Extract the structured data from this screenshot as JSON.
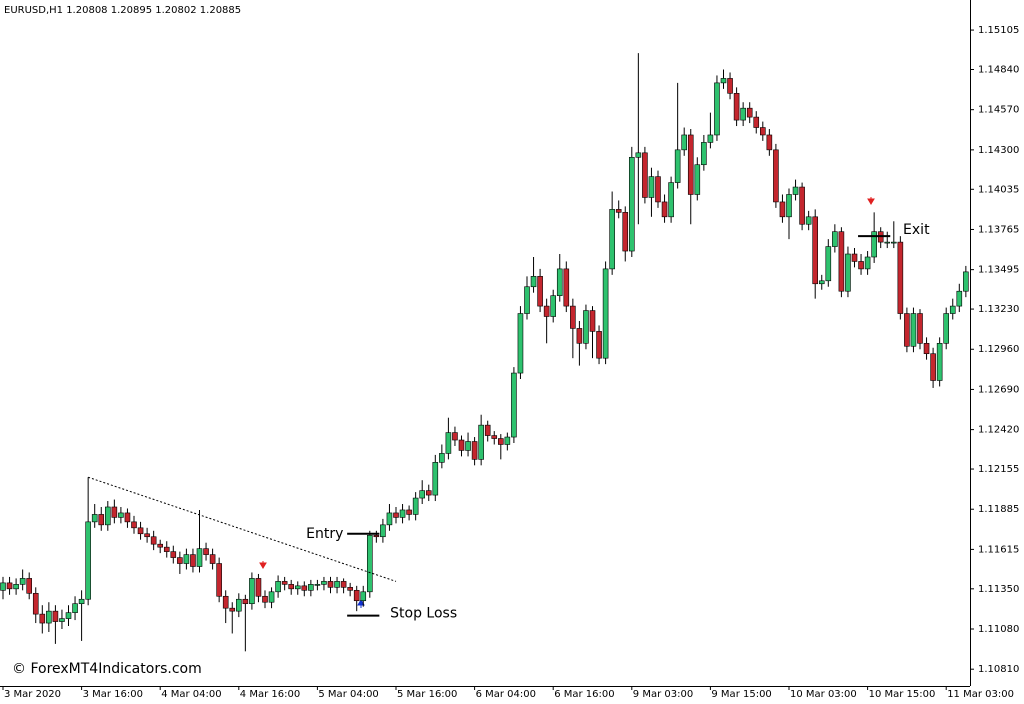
{
  "chart_data": {
    "type": "candlestick",
    "title": "EURUSD,H1  1.20808 1.20895 1.20802 1.20885",
    "watermark": "© ForexMT4Indicators.com",
    "up_color": "#2ec26e",
    "down_color": "#c4262e",
    "categories": [
      "3 Mar 2020",
      null,
      null,
      null,
      null,
      null,
      null,
      null,
      null,
      null,
      null,
      null,
      "3 Mar 16:00",
      null,
      null,
      null,
      null,
      null,
      null,
      null,
      null,
      null,
      null,
      null,
      "4 Mar 04:00",
      null,
      null,
      null,
      null,
      null,
      null,
      null,
      null,
      null,
      null,
      null,
      "4 Mar 16:00",
      null,
      null,
      null,
      null,
      null,
      null,
      null,
      null,
      null,
      null,
      null,
      "5 Mar 04:00",
      null,
      null,
      null,
      null,
      null,
      null,
      null,
      null,
      null,
      null,
      null,
      "5 Mar 16:00",
      null,
      null,
      null,
      null,
      null,
      null,
      null,
      null,
      null,
      null,
      null,
      "6 Mar 04:00",
      null,
      null,
      null,
      null,
      null,
      null,
      null,
      null,
      null,
      null,
      null,
      "6 Mar 16:00",
      null,
      null,
      null,
      null,
      null,
      null,
      null,
      null,
      null,
      null,
      null,
      "9 Mar 03:00",
      null,
      null,
      null,
      null,
      null,
      null,
      null,
      null,
      null,
      null,
      null,
      "9 Mar 15:00",
      null,
      null,
      null,
      null,
      null,
      null,
      null,
      null,
      null,
      null,
      null,
      "10 Mar 03:00",
      null,
      null,
      null,
      null,
      null,
      null,
      null,
      null,
      null,
      null,
      null,
      "10 Mar 15:00",
      null,
      null,
      null,
      null,
      null,
      null,
      null,
      null,
      null,
      null,
      null,
      "11 Mar 03:00",
      null,
      null,
      null
    ],
    "open": [
      1.1134,
      1.1139,
      1.1135,
      1.1138,
      1.1142,
      1.1132,
      1.1118,
      1.1112,
      1.112,
      1.1113,
      1.1115,
      1.1119,
      1.1125,
      1.1128,
      1.118,
      1.1185,
      1.1178,
      1.119,
      1.1183,
      1.1186,
      1.118,
      1.1176,
      1.1172,
      1.117,
      1.1165,
      1.1163,
      1.116,
      1.1156,
      1.1152,
      1.1158,
      1.115,
      1.1162,
      1.1158,
      1.1152,
      1.113,
      1.1122,
      1.112,
      1.1128,
      1.1125,
      1.1142,
      1.113,
      1.1126,
      1.1133,
      1.114,
      1.1138,
      1.1135,
      1.1137,
      1.1134,
      1.1138,
      1.1138,
      1.114,
      1.1136,
      1.114,
      1.1136,
      1.1134,
      1.1127,
      1.1133,
      1.1171,
      1.117,
      1.1178,
      1.1186,
      1.1183,
      1.1188,
      1.1185,
      1.1196,
      1.1201,
      1.1198,
      1.122,
      1.1226,
      1.124,
      1.1235,
      1.1228,
      1.1234,
      1.1222,
      1.1245,
      1.1238,
      1.1236,
      1.1232,
      1.1237,
      1.128,
      1.132,
      1.1338,
      1.1345,
      1.1325,
      1.1318,
      1.1332,
      1.135,
      1.1325,
      1.131,
      1.13,
      1.1322,
      1.1308,
      1.129,
      1.135,
      1.139,
      1.1388,
      1.1362,
      1.1425,
      1.1428,
      1.1398,
      1.1412,
      1.1395,
      1.1385,
      1.1408,
      1.143,
      1.144,
      1.14,
      1.142,
      1.1435,
      1.144,
      1.1475,
      1.1478,
      1.1468,
      1.145,
      1.1458,
      1.1452,
      1.1445,
      1.144,
      1.143,
      1.1395,
      1.1385,
      1.14,
      1.1405,
      1.138,
      1.1385,
      1.134,
      1.1342,
      1.1365,
      1.1375,
      1.1335,
      1.136,
      1.1355,
      1.135,
      1.1358,
      1.1375,
      1.1368,
      1.1368,
      1.1368,
      1.132,
      1.1298,
      1.132,
      1.13,
      1.1293,
      1.1275,
      1.13,
      1.132,
      1.1325,
      1.1335
    ],
    "high": [
      1.1143,
      1.1143,
      1.1142,
      1.1148,
      1.1146,
      1.1136,
      1.1124,
      1.1126,
      1.1124,
      1.1121,
      1.1124,
      1.113,
      1.1134,
      1.121,
      1.1192,
      1.119,
      1.1194,
      1.1195,
      1.119,
      1.1189,
      1.1184,
      1.118,
      1.1176,
      1.1174,
      1.1168,
      1.1167,
      1.1164,
      1.116,
      1.1162,
      1.1162,
      1.1188,
      1.1166,
      1.1162,
      1.1156,
      1.1134,
      1.1126,
      1.1132,
      1.1131,
      1.1146,
      1.1145,
      1.1134,
      1.1136,
      1.1144,
      1.1143,
      1.1141,
      1.114,
      1.114,
      1.1141,
      1.1141,
      1.1143,
      1.1143,
      1.1143,
      1.1142,
      1.1139,
      1.1137,
      1.1137,
      1.1174,
      1.1174,
      1.1182,
      1.1192,
      1.119,
      1.1192,
      1.1191,
      1.12,
      1.1208,
      1.1205,
      1.1225,
      1.1232,
      1.125,
      1.1244,
      1.1238,
      1.124,
      1.1237,
      1.1252,
      1.1248,
      1.1241,
      1.1239,
      1.124,
      1.1284,
      1.1325,
      1.1345,
      1.1358,
      1.135,
      1.133,
      1.1336,
      1.136,
      1.1355,
      1.133,
      1.1315,
      1.1326,
      1.1325,
      1.1312,
      1.1355,
      1.1402,
      1.1396,
      1.1392,
      1.1432,
      1.1495,
      1.1432,
      1.1418,
      1.1416,
      1.14,
      1.1412,
      1.1475,
      1.1445,
      1.1444,
      1.1425,
      1.144,
      1.1455,
      1.148,
      1.1484,
      1.1482,
      1.1472,
      1.1462,
      1.1462,
      1.1456,
      1.1449,
      1.1444,
      1.1434,
      1.14,
      1.1404,
      1.141,
      1.1408,
      1.1389,
      1.139,
      1.1346,
      1.137,
      1.138,
      1.1378,
      1.1365,
      1.1364,
      1.136,
      1.1362,
      1.1388,
      1.1378,
      1.1375,
      1.1382,
      1.1372,
      1.1324,
      1.1324,
      1.1323,
      1.1304,
      1.1297,
      1.1304,
      1.1324,
      1.133,
      1.134,
      1.1352
    ],
    "low": [
      1.1128,
      1.1131,
      1.1131,
      1.1134,
      1.1128,
      1.1112,
      1.1105,
      1.1106,
      1.1098,
      1.1108,
      1.111,
      1.1114,
      1.11,
      1.1124,
      1.1176,
      1.1174,
      1.1174,
      1.1179,
      1.1179,
      1.1176,
      1.1172,
      1.1168,
      1.1166,
      1.1161,
      1.1159,
      1.1156,
      1.1152,
      1.1145,
      1.1148,
      1.1146,
      1.1146,
      1.1154,
      1.1148,
      1.1126,
      1.1112,
      1.1105,
      1.1116,
      1.1093,
      1.1121,
      1.1126,
      1.1122,
      1.1122,
      1.1129,
      1.1134,
      1.1131,
      1.1131,
      1.113,
      1.113,
      1.1134,
      1.1134,
      1.1132,
      1.1132,
      1.1132,
      1.113,
      1.112,
      1.1123,
      1.1129,
      1.1166,
      1.1166,
      1.1174,
      1.1179,
      1.1179,
      1.1181,
      1.1181,
      1.1192,
      1.1194,
      1.1194,
      1.1216,
      1.1222,
      1.1231,
      1.1224,
      1.1224,
      1.1218,
      1.1218,
      1.1234,
      1.1232,
      1.1222,
      1.1228,
      1.1233,
      1.1276,
      1.1316,
      1.1334,
      1.1321,
      1.13,
      1.1314,
      1.1328,
      1.1321,
      1.129,
      1.1285,
      1.1296,
      1.129,
      1.1286,
      1.1286,
      1.1346,
      1.1384,
      1.1355,
      1.1358,
      1.138,
      1.1394,
      1.1385,
      1.1391,
      1.1381,
      1.1381,
      1.1404,
      1.1426,
      1.138,
      1.1396,
      1.1416,
      1.1431,
      1.1436,
      1.1471,
      1.1464,
      1.1446,
      1.1446,
      1.1448,
      1.1441,
      1.1436,
      1.1426,
      1.1391,
      1.1381,
      1.137,
      1.1396,
      1.1376,
      1.1376,
      1.133,
      1.1336,
      1.1338,
      1.1361,
      1.1331,
      1.1331,
      1.1351,
      1.1346,
      1.1346,
      1.1354,
      1.1364,
      1.1364,
      1.1364,
      1.1316,
      1.1294,
      1.1294,
      1.1296,
      1.1289,
      1.127,
      1.1271,
      1.1296,
      1.1316,
      1.1321,
      1.1331
    ],
    "close": [
      1.1139,
      1.1135,
      1.1138,
      1.1142,
      1.1132,
      1.1118,
      1.1112,
      1.112,
      1.1113,
      1.1115,
      1.1119,
      1.1125,
      1.1128,
      1.118,
      1.1185,
      1.1178,
      1.119,
      1.1183,
      1.1186,
      1.118,
      1.1176,
      1.1172,
      1.117,
      1.1165,
      1.1163,
      1.116,
      1.1156,
      1.1152,
      1.1158,
      1.115,
      1.1162,
      1.1158,
      1.1152,
      1.113,
      1.1122,
      1.112,
      1.1128,
      1.1125,
      1.1142,
      1.113,
      1.1126,
      1.1133,
      1.114,
      1.1138,
      1.1135,
      1.1137,
      1.1134,
      1.1138,
      1.1138,
      1.114,
      1.1136,
      1.114,
      1.1136,
      1.1134,
      1.1127,
      1.1133,
      1.1171,
      1.117,
      1.1178,
      1.1186,
      1.1183,
      1.1188,
      1.1185,
      1.1196,
      1.1201,
      1.1198,
      1.122,
      1.1226,
      1.124,
      1.1235,
      1.1228,
      1.1234,
      1.1222,
      1.1245,
      1.1238,
      1.1236,
      1.1232,
      1.1237,
      1.128,
      1.132,
      1.1338,
      1.1345,
      1.1325,
      1.1318,
      1.1332,
      1.135,
      1.1325,
      1.131,
      1.13,
      1.1322,
      1.1308,
      1.129,
      1.135,
      1.139,
      1.1388,
      1.1362,
      1.1425,
      1.1428,
      1.1398,
      1.1412,
      1.1395,
      1.1385,
      1.1408,
      1.143,
      1.144,
      1.14,
      1.142,
      1.1435,
      1.144,
      1.1475,
      1.1478,
      1.1468,
      1.145,
      1.1458,
      1.1452,
      1.1445,
      1.144,
      1.143,
      1.1395,
      1.1385,
      1.14,
      1.1405,
      1.138,
      1.1385,
      1.134,
      1.1342,
      1.1365,
      1.1375,
      1.1335,
      1.136,
      1.1355,
      1.135,
      1.1358,
      1.1375,
      1.1368,
      1.1368,
      1.1368,
      1.132,
      1.1298,
      1.132,
      1.13,
      1.1293,
      1.1275,
      1.13,
      1.132,
      1.1325,
      1.1335,
      1.1348
    ],
    "ylim": [
      1.10697,
      1.15307
    ],
    "yticks": [
      1.15105,
      {
        "value": 1.1484,
        "label": "1.14840"
      },
      {
        "value": 1.1457,
        "label": "1.14570"
      },
      {
        "value": 1.143,
        "label": "1.14300"
      },
      1.14035,
      1.13765,
      1.13495,
      {
        "value": 1.1323,
        "label": "1.13230"
      },
      {
        "value": 1.1296,
        "label": "1.12960"
      },
      {
        "value": 1.1269,
        "label": "1.12690"
      },
      {
        "value": 1.1242,
        "label": "1.12420"
      },
      1.12155,
      1.11885,
      1.11615,
      {
        "value": 1.1135,
        "label": "1.11350"
      },
      {
        "value": 1.1108,
        "label": "1.11080"
      },
      {
        "value": 1.1081,
        "label": "1.10810"
      }
    ],
    "levels": [
      {
        "label": "Entry",
        "value": 1.1172
      },
      {
        "label": "Stop Loss",
        "value": 1.1117
      },
      {
        "label": "Exit",
        "value": 1.1372
      }
    ],
    "trendline": {
      "x": [
        13,
        60
      ],
      "values": [
        1.121,
        1.114
      ]
    }
  }
}
